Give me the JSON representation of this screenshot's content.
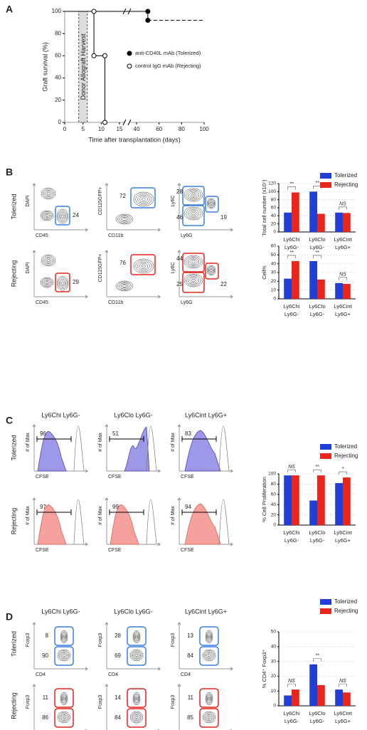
{
  "panel_letters": [
    "A",
    "B",
    "C",
    "D"
  ],
  "chart_data": [
    {
      "type": "step",
      "y_label": "Graft survival (%)",
      "x_label": "Time after transplantation (days)",
      "xlim": [
        0,
        100
      ],
      "xticks": [
        0,
        5,
        10,
        15,
        40,
        60,
        80,
        100
      ],
      "ylim": [
        0,
        100
      ],
      "yticks": [
        0,
        20,
        40,
        60,
        80,
        100
      ],
      "annotation": {
        "text": "Donor Allograft Harvest",
        "x": 5
      },
      "series": [
        {
          "name": "anti-CD40L mAb (Tolerized)",
          "color": "#000000",
          "filled": true,
          "dashed_tail": true,
          "x": [
            0,
            50,
            50,
            100
          ],
          "values": [
            100,
            100,
            92,
            92
          ]
        },
        {
          "name": "control IgG mAb (Rejecting)",
          "color": "#000000",
          "filled": false,
          "dashed_tail": false,
          "x": [
            0,
            8,
            8,
            11,
            11
          ],
          "values": [
            100,
            100,
            60,
            60,
            0
          ]
        }
      ]
    },
    {
      "type": "bar",
      "y_label": "Total cell number (x10⁵)",
      "legend": true,
      "grid": true,
      "ylim": [
        0,
        120
      ],
      "yticks": [
        0,
        20,
        40,
        60,
        80,
        100,
        120
      ],
      "categories": [
        [
          "Ly6Chi",
          "Ly6G-"
        ],
        [
          "Ly6Clo",
          "Ly6G-"
        ],
        [
          "Ly6Cint",
          "Ly6G+"
        ]
      ],
      "annotations": [
        "**",
        "**",
        "NS"
      ],
      "series": [
        {
          "name": "Tolerized",
          "color": "#1f3fd8",
          "values": [
            48,
            100,
            48
          ]
        },
        {
          "name": "Rejecting",
          "color": "#e8261c",
          "values": [
            98,
            45,
            47
          ]
        }
      ]
    },
    {
      "type": "bar",
      "y_label": "Cell%",
      "legend": false,
      "grid": true,
      "ylim": [
        0,
        60
      ],
      "yticks": [
        0,
        10,
        20,
        30,
        40,
        50,
        60
      ],
      "categories": [
        [
          "Ly6Chi",
          "Ly6G-"
        ],
        [
          "Ly6Clo",
          "Ly6G-"
        ],
        [
          "Ly6Cint",
          "Ly6G+"
        ]
      ],
      "annotations": [
        "**",
        "**",
        "NS"
      ],
      "series": [
        {
          "name": "Tolerized",
          "color": "#1f3fd8",
          "values": [
            23,
            43,
            18
          ]
        },
        {
          "name": "Rejecting",
          "color": "#e8261c",
          "values": [
            43,
            22,
            17
          ]
        }
      ]
    },
    {
      "type": "bar",
      "y_label": "% Cell Proliferation",
      "legend": true,
      "grid": true,
      "ylim": [
        0,
        100
      ],
      "yticks": [
        0,
        20,
        40,
        60,
        80,
        100
      ],
      "categories": [
        [
          "Ly6Chi",
          "Ly6G-"
        ],
        [
          "Ly6Clo",
          "Ly6G-"
        ],
        [
          "Ly6Cint",
          "Ly6G+"
        ]
      ],
      "annotations": [
        "NS",
        "**",
        "*"
      ],
      "series": [
        {
          "name": "Tolerized",
          "color": "#1f3fd8",
          "values": [
            97,
            48,
            82
          ]
        },
        {
          "name": "Rejecting",
          "color": "#e8261c",
          "values": [
            97,
            97,
            93
          ]
        }
      ]
    },
    {
      "type": "bar",
      "y_label": "% CD4⁺ Foxp3⁺",
      "legend": true,
      "grid": true,
      "ylim": [
        0,
        50
      ],
      "yticks": [
        0,
        10,
        20,
        30,
        40,
        50
      ],
      "categories": [
        [
          "Ly6Chi",
          "Ly6G-"
        ],
        [
          "Ly6Clo",
          "Ly6G-"
        ],
        [
          "Ly6Cint",
          "Ly6G+"
        ]
      ],
      "annotations": [
        "NS",
        "**",
        "NS"
      ],
      "series": [
        {
          "name": "Tolerized",
          "color": "#1f3fd8",
          "values": [
            7,
            28,
            11
          ]
        },
        {
          "name": "Rejecting",
          "color": "#e8261c",
          "values": [
            11,
            14,
            9
          ]
        }
      ]
    }
  ],
  "flow_B": {
    "rows": [
      "Tolerized",
      "Rejecting"
    ],
    "plots": [
      {
        "y_label": "DAPI",
        "x_label": "CD45",
        "gates": [
          [
            24
          ],
          [
            29
          ]
        ]
      },
      {
        "y_label": "CD115GFP+",
        "x_label": "CD11b",
        "gates": [
          [
            72
          ],
          [
            76
          ]
        ]
      },
      {
        "y_label": "Ly6C",
        "x_label": "Ly6G",
        "gates": [
          [
            28,
            46,
            19
          ],
          [
            44,
            25,
            22
          ]
        ]
      }
    ]
  },
  "flow_C": {
    "columns": [
      "Ly6Chi Ly6G-",
      "Ly6Clo Ly6G-",
      "Ly6Cint Ly6G+"
    ],
    "rows": [
      "Tolerized",
      "Rejecting"
    ],
    "y_label": "# of Max",
    "x_label": "CFSE",
    "numbers": [
      [
        96,
        51,
        83
      ],
      [
        97,
        99,
        94
      ]
    ]
  },
  "flow_D": {
    "columns": [
      "Ly6Chi Ly6G-",
      "Ly6Clo Ly6G-",
      "Ly6Cint Ly6G+"
    ],
    "rows": [
      "Tolerized",
      "Rejecting"
    ],
    "y_label": "Foxp3",
    "x_label": "CD4",
    "numbers": [
      [
        [
          8,
          90
        ],
        [
          28,
          69
        ],
        [
          13,
          84
        ]
      ],
      [
        [
          11,
          86
        ],
        [
          14,
          84
        ],
        [
          11,
          85
        ]
      ]
    ]
  }
}
